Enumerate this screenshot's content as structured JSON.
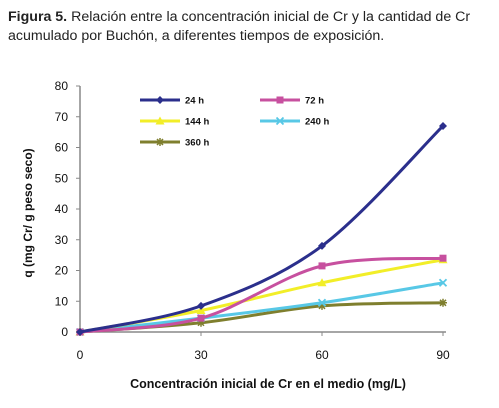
{
  "caption": {
    "label": "Figura 5.",
    "text": " Relación entre la concentración inicial de Cr y la cantidad de Cr acumulado por Buchón, a diferentes tiempos de exposición."
  },
  "chart_data": {
    "type": "line",
    "x": [
      0,
      30,
      60,
      90
    ],
    "xticks": [
      "0",
      "30",
      "60",
      "90"
    ],
    "yticks": [
      "0",
      "10",
      "20",
      "30",
      "40",
      "50",
      "60",
      "70",
      "80"
    ],
    "xlim": [
      0,
      90
    ],
    "ylim": [
      0,
      80
    ],
    "xlabel": "Concentración inicial de Cr en el medio (mg/L)",
    "ylabel": "q (mg Cr/ g peso seco)",
    "grid": false,
    "legend_position": "top-left inside",
    "series": [
      {
        "name": "24 h",
        "values": [
          0,
          8.5,
          28,
          67
        ],
        "color": "#2b2f8c",
        "marker": "diamond"
      },
      {
        "name": "72 h",
        "values": [
          0,
          4.5,
          21.5,
          24
        ],
        "color": "#c7509f",
        "marker": "square"
      },
      {
        "name": "144 h",
        "values": [
          0,
          7,
          16,
          23.5
        ],
        "color": "#f2ee28",
        "marker": "triangle"
      },
      {
        "name": "240 h",
        "values": [
          0,
          4.5,
          9.5,
          16
        ],
        "color": "#58c8e6",
        "marker": "x"
      },
      {
        "name": "360 h",
        "values": [
          0,
          3,
          8.5,
          9.5
        ],
        "color": "#7f7f2e",
        "marker": "star"
      }
    ]
  }
}
